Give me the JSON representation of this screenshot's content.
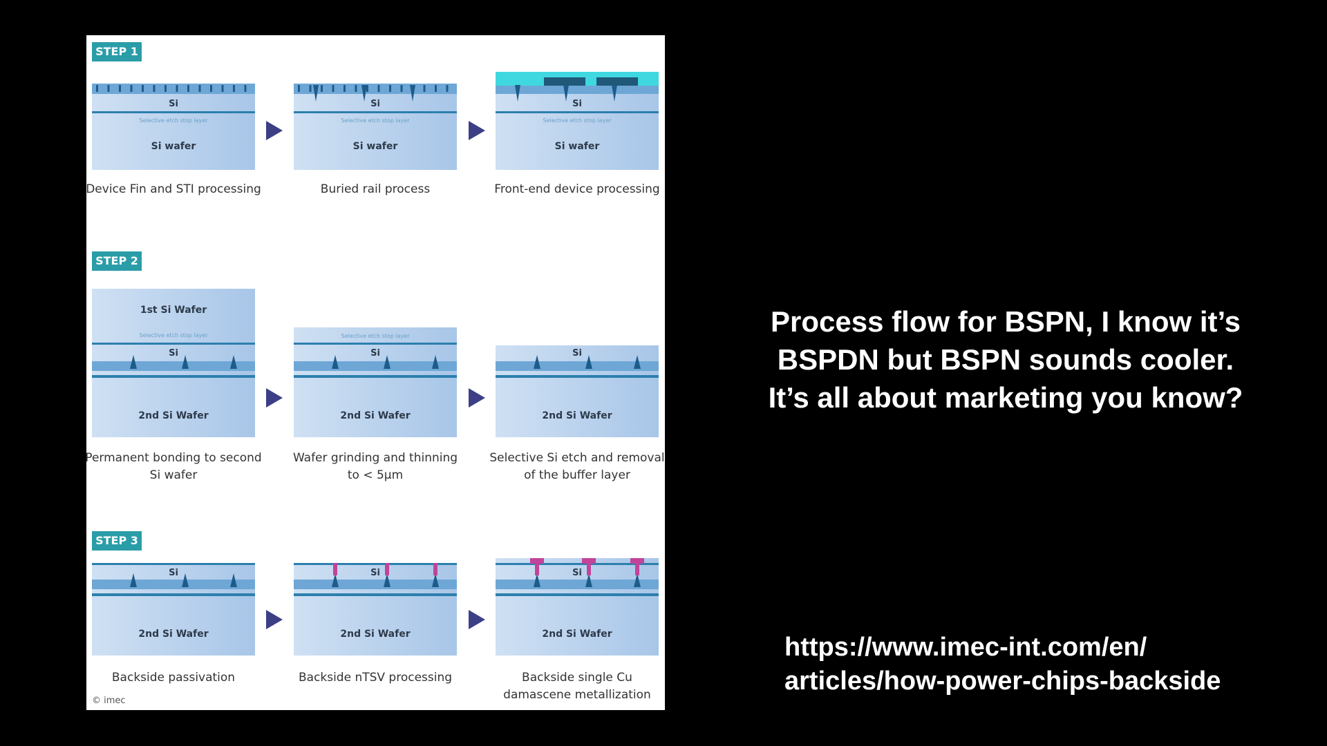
{
  "figure": {
    "steps": [
      "STEP 1",
      "STEP 2",
      "STEP 3"
    ],
    "labels": {
      "si": "Si",
      "si_wafer": "Si wafer",
      "stop_layer": "Selective etch stop layer",
      "first_wafer": "1st Si Wafer",
      "second_wafer": "2nd Si Wafer"
    },
    "captions": [
      "Device Fin and STI processing",
      "Buried rail process",
      "Front-end device processing",
      "Permanent bonding to second Si wafer",
      "Wafer grinding and thinning to < 5µm",
      "Selective Si etch and removal of the buffer layer",
      "Backside passivation",
      "Backside nTSV processing",
      "Backside single Cu damascene metallization"
    ],
    "copyright": "© imec",
    "colors": {
      "step_badge": "#2a9da8",
      "arrow": "#3c3f86",
      "metal": "#c2449a",
      "frontend": "#3fd8e0"
    }
  },
  "text": {
    "headline_lines": [
      "Process flow for BSPN, I know it’s",
      "BSPDN but BSPN sounds cooler.",
      "It’s all about marketing you know?"
    ],
    "link_lines": [
      "https://www.imec-int.com/en/",
      "articles/how-power-chips-backside"
    ]
  }
}
